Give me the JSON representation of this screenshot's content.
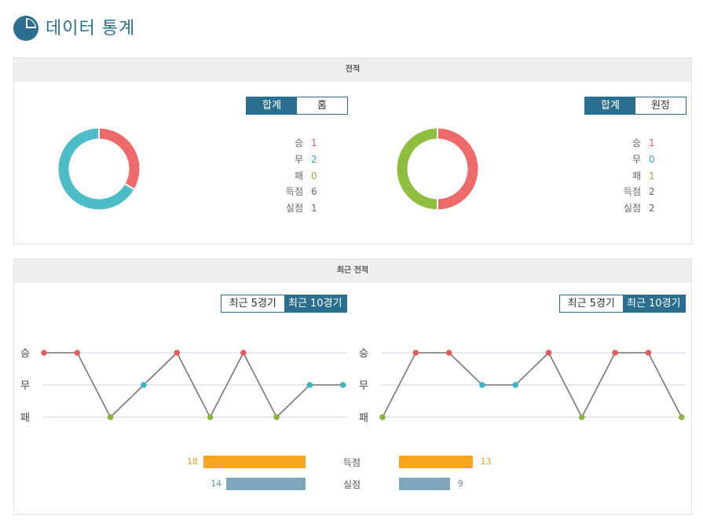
{
  "header": {
    "title": "데이터 통계",
    "icon": "pie-chart-icon"
  },
  "record": {
    "title": "전적",
    "left": {
      "tabs": [
        {
          "label": "합계",
          "active": true
        },
        {
          "label": "홈",
          "active": false
        }
      ],
      "stats": [
        {
          "label": "승",
          "value": "1",
          "color": "#e35d5d"
        },
        {
          "label": "무",
          "value": "2",
          "color": "#3aa3c7"
        },
        {
          "label": "패",
          "value": "0",
          "color": "#8cb33a"
        },
        {
          "label": "득점",
          "value": "6",
          "color": "#666666"
        },
        {
          "label": "실점",
          "value": "1",
          "color": "#666666"
        }
      ],
      "donut": [
        {
          "label": "승",
          "value": 1,
          "color": "#ef6a6a"
        },
        {
          "label": "무",
          "value": 2,
          "color": "#4cbcc8"
        },
        {
          "label": "패",
          "value": 0,
          "color": "#8fbd3f"
        }
      ]
    },
    "right": {
      "tabs": [
        {
          "label": "합계",
          "active": true
        },
        {
          "label": "원정",
          "active": false
        }
      ],
      "stats": [
        {
          "label": "승",
          "value": "1",
          "color": "#e35d5d"
        },
        {
          "label": "무",
          "value": "0",
          "color": "#3aa3c7"
        },
        {
          "label": "패",
          "value": "1",
          "color": "#8cb33a"
        },
        {
          "label": "득점",
          "value": "2",
          "color": "#666666"
        },
        {
          "label": "실점",
          "value": "2",
          "color": "#666666"
        }
      ],
      "donut": [
        {
          "label": "승",
          "value": 1,
          "color": "#ef6a6a"
        },
        {
          "label": "무",
          "value": 0,
          "color": "#4cbcc8"
        },
        {
          "label": "패",
          "value": 1,
          "color": "#8fbd3f"
        }
      ]
    }
  },
  "recent": {
    "title": "최근 전적",
    "left_tabs": [
      {
        "label": "최근 5경기",
        "active": false
      },
      {
        "label": "최근 10경기",
        "active": true
      }
    ],
    "right_tabs": [
      {
        "label": "최근 5경기",
        "active": false
      },
      {
        "label": "최근 10경기",
        "active": true
      }
    ],
    "y_labels": [
      "승",
      "무",
      "패"
    ],
    "colors": {
      "win": "#e35d5d",
      "draw": "#3ab5c4",
      "loss": "#8cb33a",
      "line": "#777777",
      "grid": "#dde3ea"
    },
    "left_results": [
      "승",
      "승",
      "패",
      "무",
      "승",
      "패",
      "승",
      "패",
      "무",
      "무"
    ],
    "right_results": [
      "패",
      "승",
      "승",
      "무",
      "무",
      "승",
      "패",
      "승",
      "승",
      "패"
    ],
    "bars": {
      "scored": {
        "label": "득점",
        "left": 18,
        "right": 13,
        "color": "#f8a51f"
      },
      "conceded": {
        "label": "실점",
        "left": 14,
        "right": 9,
        "color": "#7ea6bd"
      }
    }
  }
}
